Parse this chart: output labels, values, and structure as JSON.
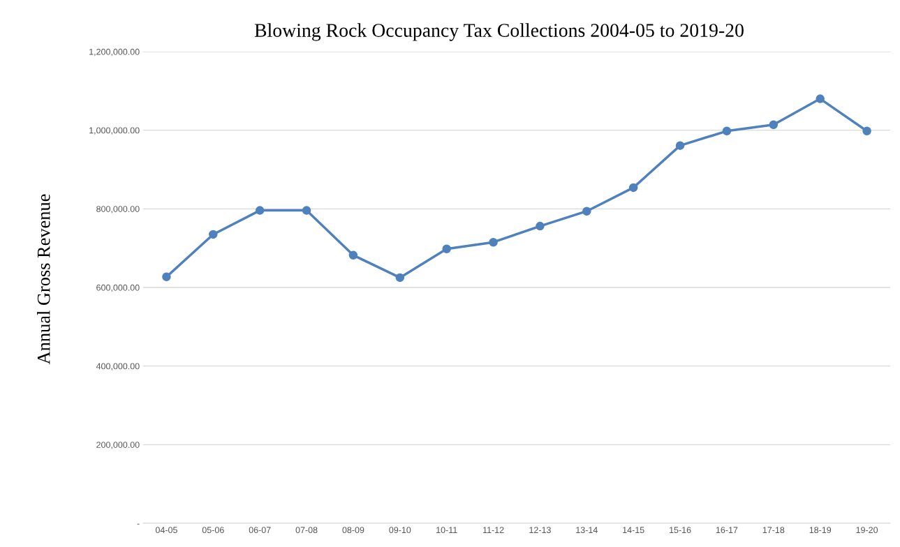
{
  "chart_data": {
    "type": "line",
    "title": "Blowing Rock Occupancy Tax Collections 2004-05 to 2019-20",
    "ylabel": "Annual Gross Revenue",
    "categories": [
      "04-05",
      "05-06",
      "06-07",
      "07-08",
      "08-09",
      "09-10",
      "10-11",
      "11-12",
      "12-13",
      "13-14",
      "14-15",
      "15-16",
      "16-17",
      "17-18",
      "18-19",
      "19-20"
    ],
    "series": [
      {
        "color": "#4f81bd",
        "values": [
          627000,
          735000,
          796000,
          796000,
          682000,
          625000,
          698000,
          715000,
          756000,
          794000,
          854000,
          961000,
          998000,
          1014000,
          1080000,
          998000
        ]
      }
    ],
    "ylim": [
      0,
      1200000
    ],
    "yticks": [
      {
        "value": 0,
        "label": "-"
      },
      {
        "value": 200000,
        "label": "200,000.00"
      },
      {
        "value": 400000,
        "label": "400,000.00"
      },
      {
        "value": 600000,
        "label": "600,000.00"
      },
      {
        "value": 800000,
        "label": "800,000.00"
      },
      {
        "value": 1000000,
        "label": "1,000,000.00"
      },
      {
        "value": 1200000,
        "label": "1,200,000.00"
      }
    ],
    "grid": "y",
    "marker": "circle",
    "line_style": "solid"
  }
}
